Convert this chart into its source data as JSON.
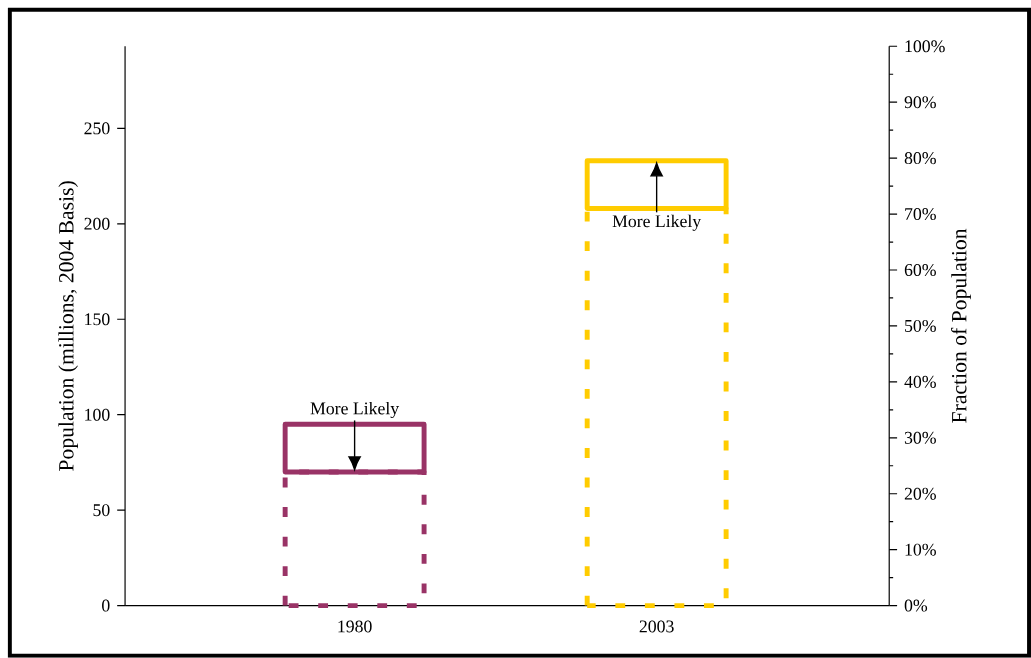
{
  "chart_data": {
    "type": "bar",
    "stacked": true,
    "categories": [
      "1980",
      "2003"
    ],
    "series": [
      {
        "values": [
          70,
          208
        ],
        "colors": [
          "#993366",
          "#ffcc00"
        ],
        "line_style": "dashed"
      },
      {
        "values": [
          25,
          25
        ],
        "colors": [
          "#993366",
          "#ffcc00"
        ],
        "line_style": "solid"
      }
    ],
    "ylabel": "Population (millions, 2004 Basis)",
    "y2label": "Fraction of Population",
    "ylim": [
      0,
      293
    ],
    "yticks": [
      0,
      50,
      100,
      150,
      200,
      250
    ],
    "y2lim": [
      0,
      100
    ],
    "y2ticks": [
      {
        "value": 0,
        "label": "0%"
      },
      {
        "value": 10,
        "label": "10%"
      },
      {
        "value": 20,
        "label": "20%"
      },
      {
        "value": 30,
        "label": "30%"
      },
      {
        "value": 40,
        "label": "40%"
      },
      {
        "value": 50,
        "label": "50%"
      },
      {
        "value": 60,
        "label": "60%"
      },
      {
        "value": 70,
        "label": "70%"
      },
      {
        "value": 80,
        "label": "80%"
      },
      {
        "value": 90,
        "label": "90%"
      },
      {
        "value": 100,
        "label": "100%"
      }
    ],
    "annotations": [
      {
        "text": "More Likely",
        "x": "1980",
        "y": 95
      },
      {
        "text": "More Likely",
        "x": "2003",
        "y": 208
      }
    ]
  }
}
